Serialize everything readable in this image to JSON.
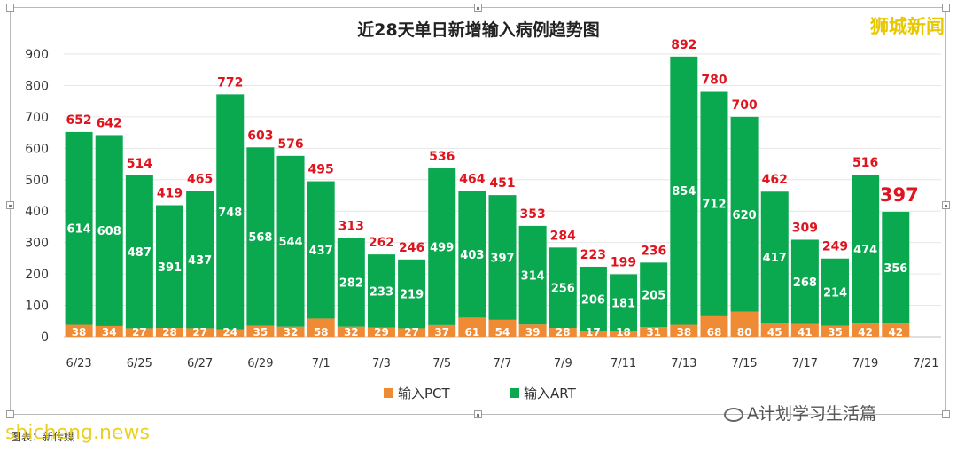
{
  "brand": "狮城新闻",
  "wechat_label": "A计划学习生活篇",
  "footer_caption": "图表：新传媒",
  "footer_watermark": "shicheng.news",
  "colors": {
    "art": "#0aa84f",
    "pct": "#ef8b35",
    "total_label": "#e0141e",
    "inner_label": "#ffffff"
  },
  "chart_data": {
    "type": "bar",
    "stacked": true,
    "title": "近28天单日新增输入病例趋势图",
    "xlabel": "",
    "ylabel": "",
    "ylim": [
      0,
      900
    ],
    "yticks": [
      "0",
      "100",
      "200",
      "300",
      "400",
      "500",
      "600",
      "700",
      "800",
      "900"
    ],
    "grid": true,
    "legend_position": "bottom",
    "categories": [
      "6/23",
      "6/24",
      "6/25",
      "6/26",
      "6/27",
      "6/28",
      "6/29",
      "6/30",
      "7/1",
      "7/2",
      "7/3",
      "7/4",
      "7/5",
      "7/6",
      "7/7",
      "7/8",
      "7/9",
      "7/10",
      "7/11",
      "7/12",
      "7/13",
      "7/14",
      "7/15",
      "7/16",
      "7/17",
      "7/18",
      "7/19",
      "7/20",
      "7/21"
    ],
    "tick_labels": [
      "6/23",
      "",
      "6/25",
      "",
      "6/27",
      "",
      "6/29",
      "",
      "7/1",
      "",
      "7/3",
      "",
      "7/5",
      "",
      "7/7",
      "",
      "7/9",
      "",
      "7/11",
      "",
      "7/13",
      "",
      "7/15",
      "",
      "7/17",
      "",
      "7/19",
      "",
      "7/21"
    ],
    "series": [
      {
        "name": "输入PCT",
        "values": [
          38,
          34,
          27,
          28,
          27,
          24,
          35,
          32,
          58,
          32,
          29,
          27,
          37,
          61,
          54,
          39,
          28,
          17,
          18,
          31,
          38,
          68,
          80,
          45,
          41,
          35,
          42,
          42,
          null
        ]
      },
      {
        "name": "输入ART",
        "values": [
          614,
          608,
          487,
          391,
          437,
          748,
          568,
          544,
          437,
          282,
          233,
          219,
          499,
          403,
          397,
          314,
          256,
          206,
          181,
          205,
          854,
          712,
          620,
          417,
          268,
          214,
          474,
          356,
          null
        ]
      }
    ],
    "totals": [
      652,
      642,
      514,
      419,
      465,
      772,
      603,
      576,
      495,
      313,
      262,
      246,
      536,
      464,
      451,
      353,
      284,
      223,
      199,
      236,
      892,
      780,
      700,
      462,
      309,
      249,
      516,
      397,
      null
    ],
    "highlight_last_total": true
  }
}
